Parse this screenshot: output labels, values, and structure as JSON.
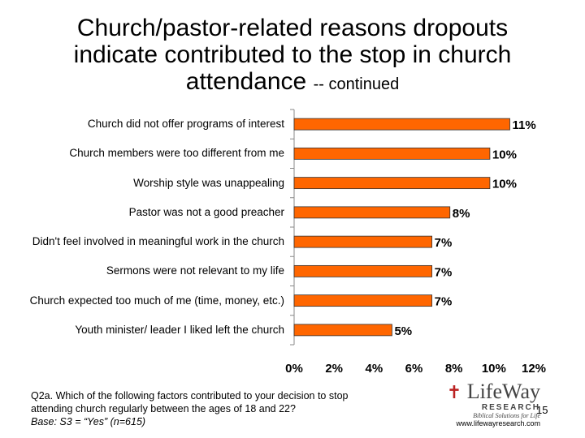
{
  "chart_data": {
    "type": "bar",
    "orientation": "horizontal",
    "title": "Church/pastor-related reasons dropouts indicate contributed to the stop in church attendance",
    "title_note": "-- continued",
    "categories": [
      "Church did not offer programs of interest",
      "Church members were too different from me",
      "Worship style was unappealing",
      "Pastor was not a good preacher",
      "Didn't feel involved in meaningful work in the church",
      "Sermons were not relevant to my life",
      "Church expected too much of me (time, money, etc.)",
      "Youth minister/ leader I liked left the church"
    ],
    "values": [
      10.8,
      9.8,
      9.8,
      7.8,
      6.9,
      6.9,
      6.9,
      4.9
    ],
    "value_labels": [
      "11%",
      "10%",
      "10%",
      "8%",
      "7%",
      "7%",
      "7%",
      "5%"
    ],
    "color": "#ff6600",
    "xlim": [
      0,
      12
    ],
    "xticks": [
      {
        "value": 0,
        "label": "0%"
      },
      {
        "value": 2,
        "label": "2%"
      },
      {
        "value": 4,
        "label": "4%"
      },
      {
        "value": 6,
        "label": "6%"
      },
      {
        "value": 8,
        "label": "8%"
      },
      {
        "value": 10,
        "label": "10%"
      },
      {
        "value": 12,
        "label": "12%"
      }
    ],
    "grid": false
  },
  "footer": {
    "question": "Q2a. Which of the following factors contributed to your decision to stop attending church regularly between the ages of 18 and 22?",
    "base": "Base: S3 = “Yes” (n=615)",
    "page_number": "15",
    "logo": {
      "name": "LifeWay",
      "sub": "RESEARCH",
      "tagline": "Biblical Solutions for Life",
      "url": "www.lifewayresearch.com"
    }
  }
}
